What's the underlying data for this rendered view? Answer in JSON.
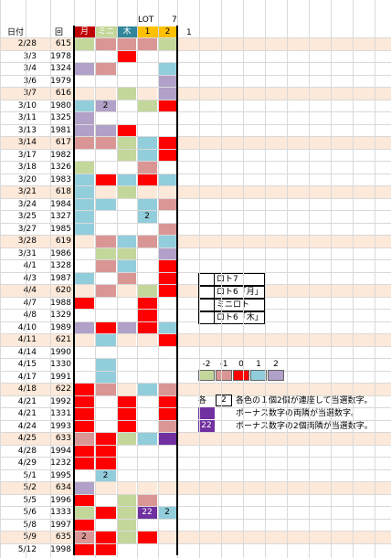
{
  "header": {
    "date_label": "日付",
    "round_label": "回",
    "lot_label": "LOT",
    "seven_label": "7",
    "one_label": "1",
    "two_label": "2",
    "extra_one": "1",
    "col_labels": [
      "月",
      "ミニ",
      "木"
    ]
  },
  "colors": {
    "sat": "#ff0000",
    "mini": "#c4d79b",
    "thu": "#92cddc",
    "one": "#ffc000",
    "two": "#ffc000",
    "rowhi": "#fde9d9",
    "v_m2": "#c4d79b",
    "v_m1": "#da9694",
    "v_0": "#ff0000",
    "v_1": "#92cddc",
    "v_2": "#b1a0c7",
    "dark": "#7030a0"
  },
  "rows": [
    {
      "date": "2/28",
      "round": "615",
      "hl": true,
      "c": [
        "",
        "m2",
        "m1",
        "m1",
        "m1",
        "m2"
      ],
      "n": [
        "",
        "",
        "",
        "",
        "",
        ""
      ]
    },
    {
      "date": "3/3",
      "round": "1978",
      "hl": false,
      "c": [
        "",
        "",
        "",
        "0",
        "",
        ""
      ],
      "n": [
        "",
        "",
        "",
        "",
        "",
        ""
      ]
    },
    {
      "date": "3/4",
      "round": "1324",
      "hl": false,
      "c": [
        "",
        "2",
        "m1",
        "",
        "",
        "1"
      ],
      "n": [
        "",
        "",
        "",
        "",
        "",
        ""
      ]
    },
    {
      "date": "3/6",
      "round": "1979",
      "hl": false,
      "c": [
        "",
        "",
        "",
        "",
        "",
        "2"
      ],
      "n": [
        "",
        "",
        "",
        "",
        "",
        ""
      ]
    },
    {
      "date": "3/7",
      "round": "616",
      "hl": true,
      "c": [
        "",
        "",
        "",
        "m2",
        "",
        "2"
      ],
      "n": [
        "",
        "",
        "",
        "",
        "",
        ""
      ]
    },
    {
      "date": "3/10",
      "round": "1980",
      "hl": false,
      "c": [
        "",
        "1",
        "2",
        "",
        "m2",
        "0"
      ],
      "n": [
        "",
        "",
        "2",
        "",
        "",
        ""
      ]
    },
    {
      "date": "3/11",
      "round": "1325",
      "hl": false,
      "c": [
        "",
        "2",
        "",
        "",
        "",
        ""
      ],
      "n": [
        "",
        "",
        "",
        "",
        "",
        ""
      ]
    },
    {
      "date": "3/13",
      "round": "1981",
      "hl": false,
      "c": [
        "",
        "2",
        "2",
        "0",
        "",
        ""
      ],
      "n": [
        "",
        "",
        "",
        "",
        "",
        ""
      ]
    },
    {
      "date": "3/14",
      "round": "617",
      "hl": true,
      "c": [
        "",
        "m1",
        "m1",
        "m2",
        "1",
        "0"
      ],
      "n": [
        "",
        "",
        "",
        "",
        "",
        ""
      ]
    },
    {
      "date": "3/17",
      "round": "1982",
      "hl": false,
      "c": [
        "",
        "",
        "",
        "m2",
        "1",
        "0"
      ],
      "n": [
        "",
        "",
        "",
        "",
        "",
        ""
      ]
    },
    {
      "date": "3/18",
      "round": "1326",
      "hl": false,
      "c": [
        "",
        "m2",
        "",
        "",
        "m1",
        ""
      ],
      "n": [
        "",
        "",
        "",
        "",
        "",
        ""
      ]
    },
    {
      "date": "3/20",
      "round": "1983",
      "hl": false,
      "c": [
        "",
        "1",
        "0",
        "1",
        "0",
        "1"
      ],
      "n": [
        "",
        "",
        "",
        "",
        "",
        ""
      ]
    },
    {
      "date": "3/21",
      "round": "618",
      "hl": true,
      "c": [
        "",
        "1",
        "",
        "m2",
        "",
        ""
      ],
      "n": [
        "",
        "",
        "",
        "",
        "",
        ""
      ]
    },
    {
      "date": "3/24",
      "round": "1984",
      "hl": false,
      "c": [
        "",
        "1",
        "1",
        "",
        "1",
        "m1"
      ],
      "n": [
        "",
        "",
        "",
        "",
        "",
        ""
      ]
    },
    {
      "date": "3/25",
      "round": "1327",
      "hl": false,
      "c": [
        "",
        "1",
        "",
        "",
        "1",
        ""
      ],
      "n": [
        "",
        "",
        "",
        "",
        "2",
        ""
      ]
    },
    {
      "date": "3/27",
      "round": "1985",
      "hl": false,
      "c": [
        "",
        "1",
        "",
        "",
        "",
        "m1"
      ],
      "n": [
        "",
        "",
        "",
        "",
        "",
        ""
      ]
    },
    {
      "date": "3/28",
      "round": "619",
      "hl": true,
      "c": [
        "",
        "",
        "m1",
        "1",
        "m1",
        "1"
      ],
      "n": [
        "",
        "",
        "",
        "",
        "",
        ""
      ]
    },
    {
      "date": "3/31",
      "round": "1986",
      "hl": false,
      "c": [
        "",
        "",
        "m2",
        "m2",
        "",
        "2"
      ],
      "n": [
        "",
        "",
        "",
        "",
        "",
        ""
      ]
    },
    {
      "date": "4/1",
      "round": "1328",
      "hl": false,
      "c": [
        "",
        "",
        "m1",
        "1",
        "",
        "0"
      ],
      "n": [
        "",
        "",
        "",
        "",
        "",
        ""
      ]
    },
    {
      "date": "4/3",
      "round": "1987",
      "hl": false,
      "c": [
        "",
        "1",
        "",
        "m1",
        "",
        "0"
      ],
      "n": [
        "",
        "",
        "",
        "",
        "",
        ""
      ]
    },
    {
      "date": "4/4",
      "round": "620",
      "hl": true,
      "c": [
        "",
        "",
        "m1",
        "",
        "m2",
        "0"
      ],
      "n": [
        "",
        "",
        "",
        "",
        "",
        ""
      ]
    },
    {
      "date": "4/7",
      "round": "1988",
      "hl": false,
      "c": [
        "",
        "0",
        "",
        "",
        "0",
        ""
      ],
      "n": [
        "",
        "",
        "",
        "",
        "",
        ""
      ]
    },
    {
      "date": "4/8",
      "round": "1329",
      "hl": false,
      "c": [
        "",
        "",
        "",
        "",
        "0",
        ""
      ],
      "n": [
        "",
        "",
        "",
        "",
        "",
        ""
      ]
    },
    {
      "date": "4/10",
      "round": "1989",
      "hl": false,
      "c": [
        "",
        "2",
        "0",
        "2",
        "0",
        "1"
      ],
      "n": [
        "",
        "",
        "",
        "",
        "",
        ""
      ]
    },
    {
      "date": "4/11",
      "round": "621",
      "hl": true,
      "c": [
        "",
        "",
        "1",
        "",
        "",
        "0"
      ],
      "n": [
        "",
        "",
        "",
        "",
        "",
        ""
      ]
    },
    {
      "date": "4/14",
      "round": "1990",
      "hl": false,
      "c": [
        "",
        "",
        "",
        "",
        "",
        ""
      ],
      "n": [
        "",
        "",
        "",
        "",
        "",
        ""
      ]
    },
    {
      "date": "4/15",
      "round": "1330",
      "hl": false,
      "c": [
        "",
        "",
        "1",
        "",
        "",
        ""
      ],
      "n": [
        "",
        "",
        "",
        "",
        "",
        ""
      ]
    },
    {
      "date": "4/17",
      "round": "1991",
      "hl": false,
      "c": [
        "",
        "",
        "1",
        "",
        "",
        ""
      ],
      "n": [
        "",
        "",
        "",
        "",
        "",
        ""
      ]
    },
    {
      "date": "4/18",
      "round": "622",
      "hl": true,
      "c": [
        "",
        "0",
        "m1",
        "",
        "1",
        "m1"
      ],
      "n": [
        "",
        "",
        "",
        "",
        "",
        ""
      ]
    },
    {
      "date": "4/21",
      "round": "1992",
      "hl": false,
      "c": [
        "",
        "0",
        "",
        "0",
        "",
        "0"
      ],
      "n": [
        "",
        "",
        "",
        "",
        "",
        ""
      ]
    },
    {
      "date": "4/21",
      "round": "1331",
      "hl": false,
      "c": [
        "",
        "0",
        "",
        "0",
        "",
        "0"
      ],
      "n": [
        "",
        "",
        "",
        "",
        "",
        ""
      ]
    },
    {
      "date": "4/24",
      "round": "1993",
      "hl": false,
      "c": [
        "",
        "0",
        "",
        "0",
        "",
        "m1"
      ],
      "n": [
        "",
        "",
        "",
        "",
        "",
        ""
      ]
    },
    {
      "date": "4/25",
      "round": "633",
      "hl": true,
      "c": [
        "",
        "m1",
        "0",
        "m2",
        "1",
        "dark"
      ],
      "n": [
        "",
        "",
        "",
        "",
        "",
        ""
      ]
    },
    {
      "date": "4/28",
      "round": "1994",
      "hl": false,
      "c": [
        "",
        "0",
        "0",
        "",
        "",
        ""
      ],
      "n": [
        "",
        "",
        "",
        "",
        "",
        ""
      ]
    },
    {
      "date": "4/29",
      "round": "1232",
      "hl": false,
      "c": [
        "",
        "0",
        "0",
        "",
        "",
        ""
      ],
      "n": [
        "",
        "",
        "",
        "",
        "",
        ""
      ]
    },
    {
      "date": "5/1",
      "round": "1995",
      "hl": false,
      "c": [
        "",
        "",
        "1",
        "",
        "",
        ""
      ],
      "n": [
        "",
        "",
        "2",
        "",
        "",
        ""
      ]
    },
    {
      "date": "5/2",
      "round": "634",
      "hl": true,
      "c": [
        "",
        "2",
        "",
        "",
        "",
        ""
      ],
      "n": [
        "",
        "",
        "",
        "",
        "",
        ""
      ]
    },
    {
      "date": "5/5",
      "round": "1996",
      "hl": false,
      "c": [
        "",
        "0",
        "",
        "m2",
        "m1",
        ""
      ],
      "n": [
        "",
        "",
        "",
        "",
        "",
        ""
      ]
    },
    {
      "date": "5/6",
      "round": "1333",
      "hl": false,
      "c": [
        "",
        "m2",
        "0",
        "m2",
        "dark",
        "1"
      ],
      "n": [
        "",
        "",
        "",
        "",
        "22",
        "2"
      ]
    },
    {
      "date": "5/8",
      "round": "1997",
      "hl": false,
      "c": [
        "",
        "0",
        "",
        "m2",
        "",
        ""
      ],
      "n": [
        "",
        "",
        "",
        "",
        "",
        ""
      ]
    },
    {
      "date": "5/9",
      "round": "635",
      "hl": true,
      "c": [
        "",
        "m1",
        "0",
        "m2",
        "0",
        ""
      ],
      "n": [
        "",
        "2",
        "",
        "",
        "",
        ""
      ]
    },
    {
      "date": "5/12",
      "round": "1998",
      "hl": false,
      "c": [
        "",
        "0",
        "0",
        "",
        "",
        ""
      ],
      "n": [
        "",
        "",
        "",
        "",
        "",
        ""
      ]
    }
  ],
  "legend_boxes": [
    "ロト7",
    "ロト6「月」",
    "ミニロト",
    "ロト6「木」"
  ],
  "value_scale": {
    "labels": [
      "-2",
      "-1",
      "0",
      "1",
      "2"
    ],
    "keys": [
      "m2",
      "m1",
      "0",
      "1",
      "2"
    ]
  },
  "notes": {
    "each_label": "各",
    "each_value": "2",
    "line1": "各色の１個2個が連座して当選数字。",
    "line2": "ボーナス数字の両隣が当選数字。",
    "box3_value": "22",
    "line3": "ボーナス数字の2個両隣が当選数字。"
  }
}
